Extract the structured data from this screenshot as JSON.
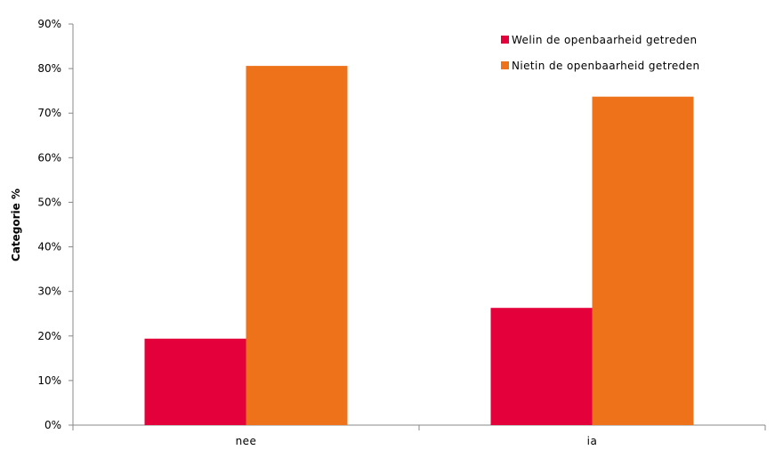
{
  "chart_data": {
    "type": "bar",
    "title": "",
    "xlabel": "",
    "ylabel": "Categorie %",
    "categories": [
      "nee",
      "ia"
    ],
    "series": [
      {
        "name": "Welin de openbaarheid getreden",
        "color": "#e4003a",
        "values": [
          19.4,
          26.3
        ]
      },
      {
        "name": "Nietin de openbaarheid getreden",
        "color": "#ee7219",
        "values": [
          80.6,
          73.7
        ]
      }
    ],
    "ylim": [
      0,
      90
    ],
    "yticks": [
      "0%",
      "10%",
      "20%",
      "30%",
      "40%",
      "50%",
      "60%",
      "70%",
      "80%",
      "90%"
    ],
    "grid": false,
    "legend_position": "top-right"
  }
}
